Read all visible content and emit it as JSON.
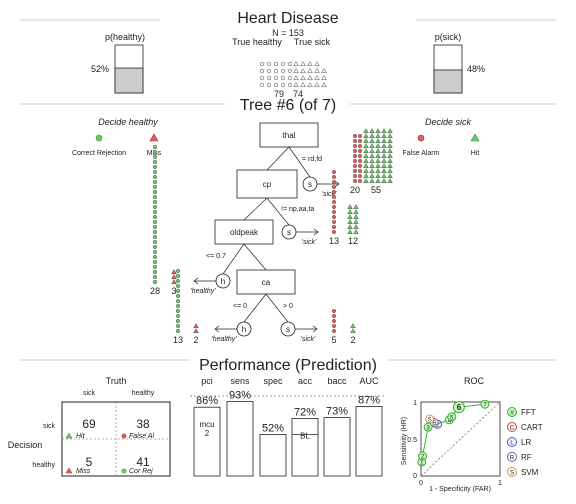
{
  "header": {
    "title": "Heart Disease",
    "n_label": "N = 153",
    "true_healthy_label": "True healthy",
    "true_sick_label": "True sick",
    "true_healthy_count": "79",
    "true_sick_count": "74",
    "p_healthy_label": "p(healthy)",
    "p_healthy_value": "52%",
    "p_healthy": 0.52,
    "p_sick_label": "p(sick)",
    "p_sick_value": "48%",
    "p_sick": 0.48
  },
  "tree": {
    "title": "Tree #6 (of 7)",
    "decide_healthy": "Decide healthy",
    "decide_sick": "Decide sick",
    "legend": {
      "correct_rejection": "Correct Rejection",
      "miss": "Miss",
      "false_alarm": "False Alarm",
      "hit": "Hit"
    },
    "nodes": [
      {
        "label": "thal",
        "branch": "= rd,fd",
        "exit_letter": "s",
        "exit_label": "'sick'",
        "left_count": "20",
        "right_count": "55",
        "left_n": 20,
        "right_n": 55
      },
      {
        "label": "cp",
        "branch": "!= np,aa,ta",
        "exit_letter": "s",
        "exit_label": "'sick'",
        "left_count": "13",
        "right_count": "12",
        "left_n": 13,
        "right_n": 12
      },
      {
        "label": "oldpeak",
        "branch": "<= 0.7",
        "exit_letter": "h",
        "exit_label": "'healthy'",
        "left_count": "28",
        "right_count": "3",
        "left_n": 28,
        "right_n": 3
      },
      {
        "label": "ca",
        "branch_left": "<= 0",
        "branch_right": "> 0",
        "exit_left_letter": "h",
        "exit_left_label": "'healthy'",
        "left_counts": [
          "13",
          "2"
        ],
        "left_n": [
          13,
          2
        ],
        "exit_right_letter": "s",
        "exit_right_label": "'sick'",
        "right_counts": [
          "5",
          "2"
        ],
        "right_n": [
          5,
          2
        ]
      }
    ]
  },
  "performance": {
    "title": "Performance (Prediction)",
    "truth_label": "Truth",
    "truth_sick": "sick",
    "truth_healthy": "healthy",
    "decision_label": "Decision",
    "decision_sick": "sick",
    "decision_healthy": "healthy",
    "cells": {
      "hit": {
        "value": "69",
        "label": "Hit"
      },
      "false_alarm": {
        "value": "38",
        "label": "False Al"
      },
      "miss": {
        "value": "5",
        "label": "Miss"
      },
      "cor_rej": {
        "value": "41",
        "label": "Cor Rej"
      }
    },
    "bars": [
      {
        "label": "pci",
        "value": "86%",
        "v": 0.86,
        "inner": "mcu",
        "inner2": "2"
      },
      {
        "label": "sens",
        "value": "93%",
        "v": 0.93
      },
      {
        "label": "spec",
        "value": "52%",
        "v": 0.52
      },
      {
        "label": "acc",
        "value": "72%",
        "v": 0.72,
        "inner": "BL",
        "baseline": 0.52
      },
      {
        "label": "bacc",
        "value": "73%",
        "v": 0.73
      },
      {
        "label": "AUC",
        "value": "87%",
        "v": 0.87
      }
    ]
  },
  "roc": {
    "title": "ROC",
    "ylabel": "Sensitivity (HR)",
    "xlabel": "1 - Specificity (FAR)",
    "x_ticks": [
      "0",
      "1"
    ],
    "y_ticks": [
      "0",
      "0.5",
      "1"
    ],
    "fft_points": [
      {
        "label": "1",
        "x": 0.01,
        "y": 0.19
      },
      {
        "label": "2",
        "x": 0.02,
        "y": 0.27
      },
      {
        "label": "3",
        "x": 0.09,
        "y": 0.66
      },
      {
        "label": "4",
        "x": 0.36,
        "y": 0.76
      },
      {
        "label": "5",
        "x": 0.39,
        "y": 0.8
      },
      {
        "label": "6",
        "x": 0.48,
        "y": 0.93
      },
      {
        "label": "7",
        "x": 0.81,
        "y": 0.97
      }
    ],
    "other_points": [
      {
        "name": "CART",
        "x": 0.13,
        "y": 0.75
      },
      {
        "name": "LR",
        "x": 0.21,
        "y": 0.7
      },
      {
        "name": "RF",
        "x": 0.17,
        "y": 0.72
      },
      {
        "name": "SVM",
        "x": 0.11,
        "y": 0.77
      }
    ],
    "legend": [
      {
        "letter": "#",
        "name": "FFT",
        "color": "#2db52d",
        "fill": "#c9f5c0"
      },
      {
        "letter": "C",
        "name": "CART",
        "color": "#d83b3b",
        "fill": "#ffffff"
      },
      {
        "letter": "L",
        "name": "LR",
        "color": "#3c5bd6",
        "fill": "#ffffff"
      },
      {
        "letter": "R",
        "name": "RF",
        "color": "#8a4fc9",
        "fill": "#ffffff"
      },
      {
        "letter": "S",
        "name": "SVM",
        "color": "#e0913a",
        "fill": "#ffffff"
      }
    ]
  },
  "colors": {
    "healthy": "#66cc66",
    "sick": "#e65c5c",
    "fft": "#2db52d",
    "bar_fill": "#cccccc"
  }
}
